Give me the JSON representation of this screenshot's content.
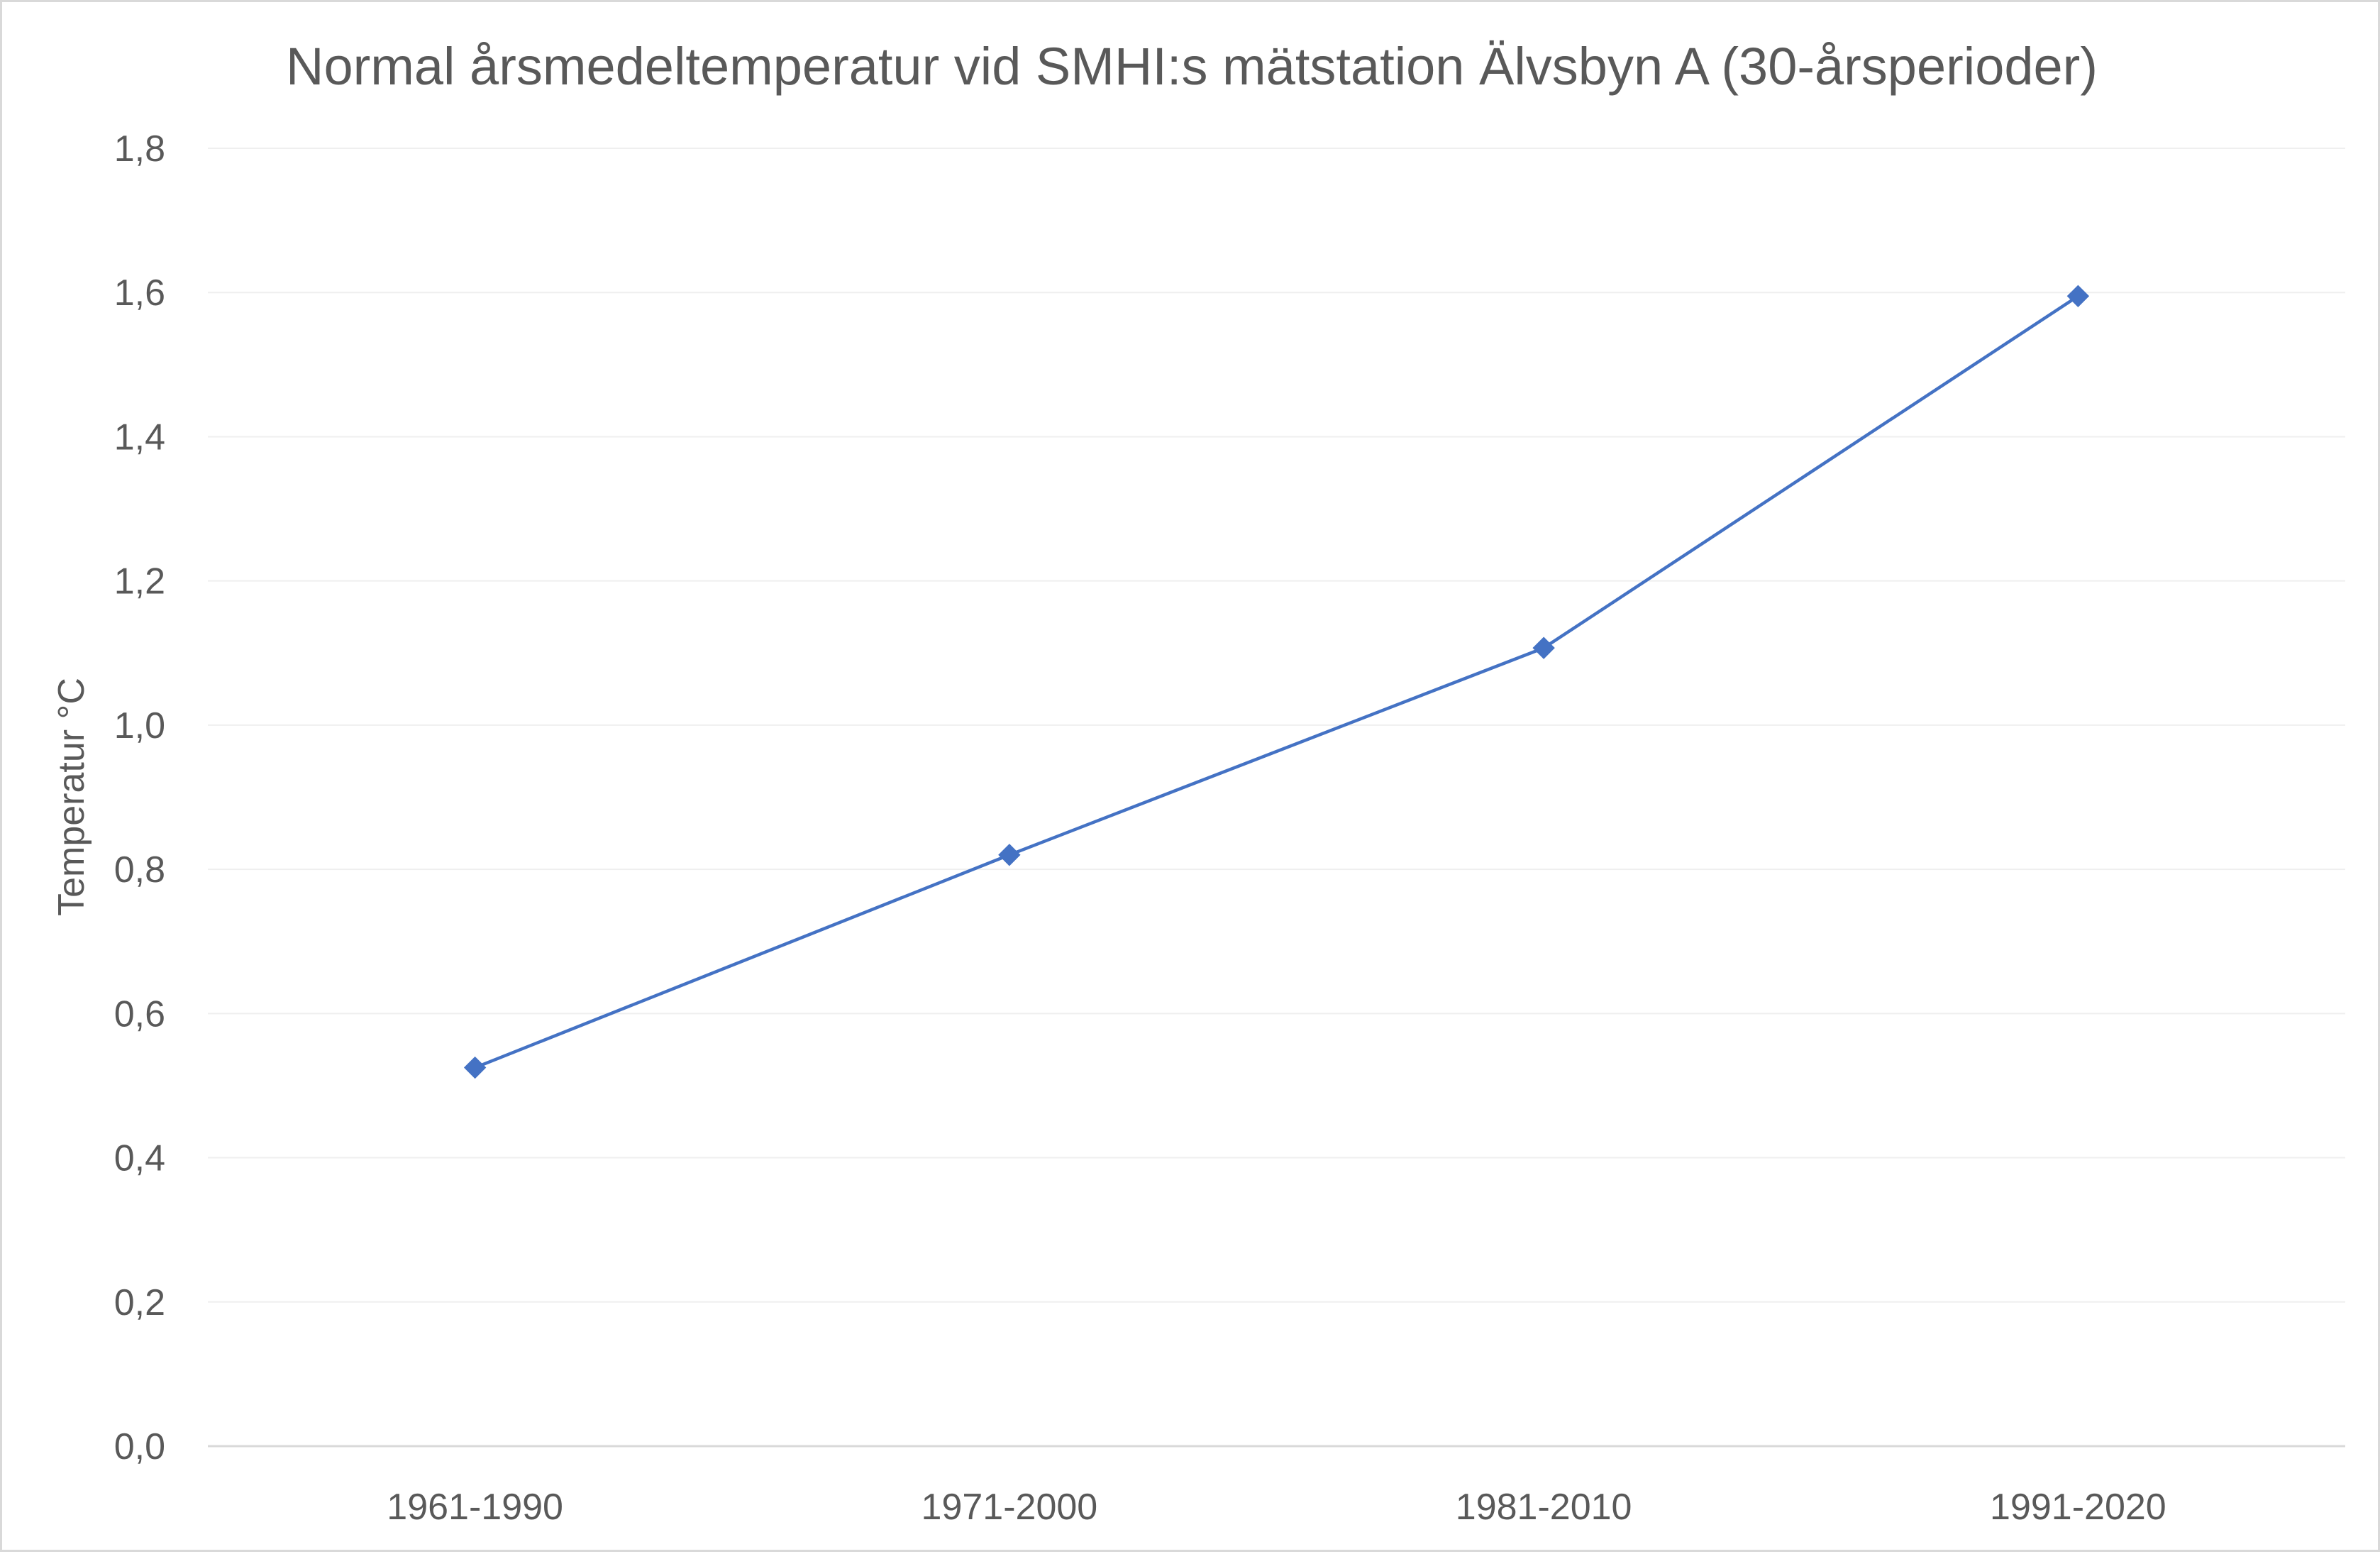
{
  "chart_data": {
    "type": "line",
    "title": "Normal årsmedeltemperatur vid SMHI:s mätstation Älvsbyn A (30-årsperioder)",
    "xlabel": "",
    "ylabel": "Temperatur °C",
    "categories": [
      "1961-1990",
      "1971-2000",
      "1981-2010",
      "1991-2020"
    ],
    "series": [
      {
        "values": [
          0.525,
          0.82,
          1.107,
          1.595
        ]
      }
    ],
    "ylim": [
      0,
      1.8
    ],
    "yticks": [
      "0,0",
      "0,2",
      "0,4",
      "0,6",
      "0,8",
      "1,0",
      "1,2",
      "1,4",
      "1,6",
      "1,8"
    ],
    "grid": true,
    "legend": "none",
    "colors": {
      "line": "#4472C4",
      "marker": "#4472C4",
      "grid": "#efefef",
      "axis": "#d9d9d9",
      "text": "#595959"
    }
  }
}
